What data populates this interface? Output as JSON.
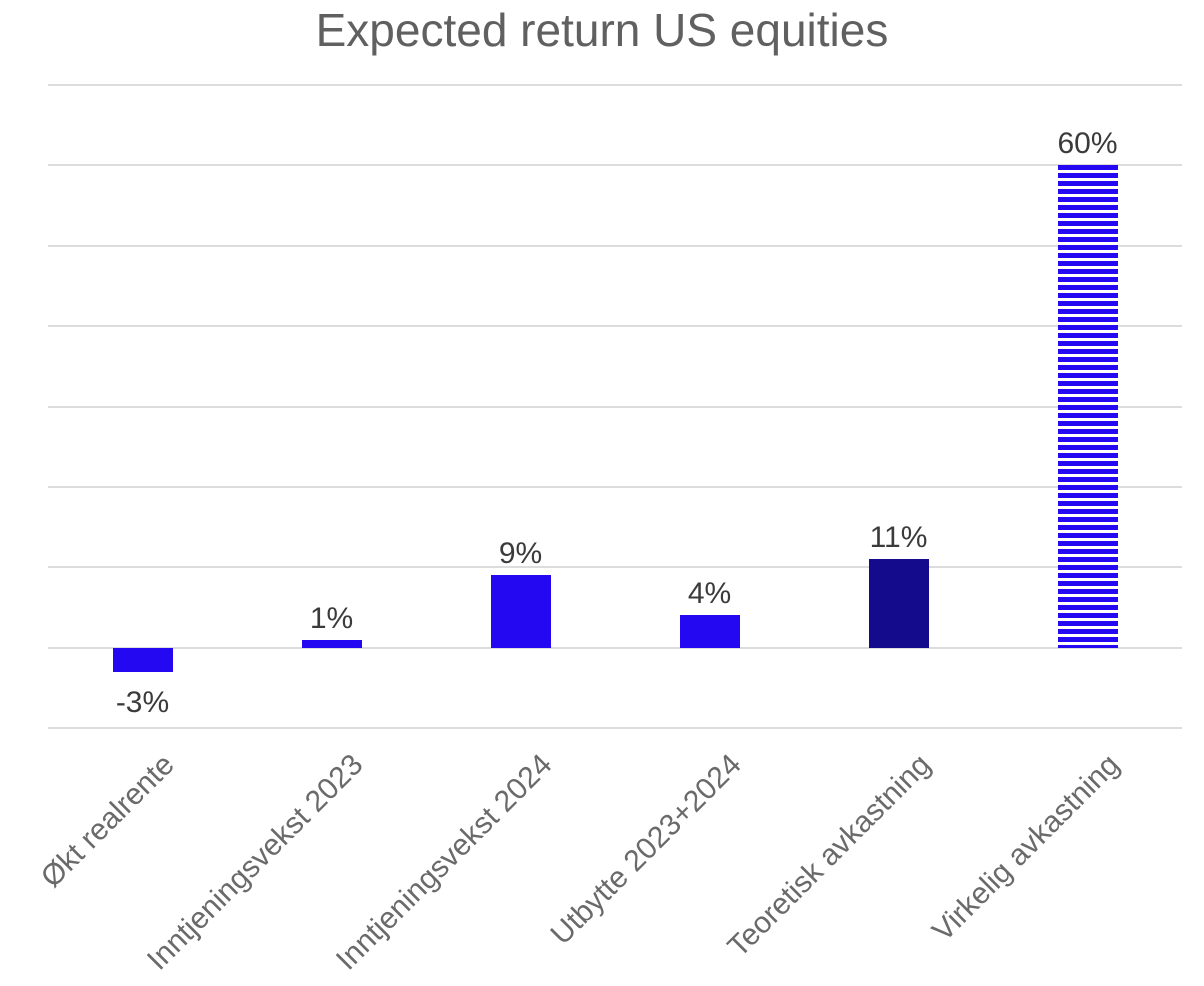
{
  "chart_data": {
    "type": "bar",
    "title": "Expected return US equities",
    "categories": [
      "Økt realrente",
      "Inntjeningsvekst 2023",
      "Inntjeningsvekst 2024",
      "Utbytte 2023+2024",
      "Teoretisk avkastning",
      "Virkelig avkastning"
    ],
    "values": [
      -3,
      1,
      9,
      4,
      11,
      60
    ],
    "data_labels": [
      "-3%",
      "1%",
      "9%",
      "4%",
      "11%",
      "60%"
    ],
    "bar_styles": [
      "solid",
      "solid",
      "solid",
      "solid",
      "solid-dark",
      "striped"
    ],
    "xlabel": "",
    "ylabel": "",
    "ylim": [
      -10,
      70
    ],
    "gridline_step": 10,
    "grid": true,
    "legend": false,
    "y_tick_labels_visible": false,
    "x_label_rotation_deg": 45,
    "colors": {
      "bar_blue": "#2408f2",
      "bar_navy": "#140a8c",
      "stripe_gap": "#ffffff",
      "gridline": "#dcdcdc",
      "title_text": "#606060",
      "axis_text": "#6a6a6a",
      "value_text": "#3b3b3b",
      "background": "#ffffff"
    }
  }
}
